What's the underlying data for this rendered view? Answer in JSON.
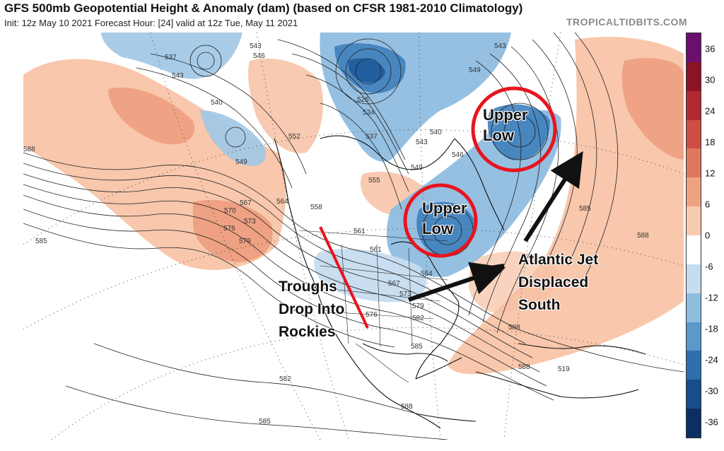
{
  "header": {
    "title": "GFS 500mb Geopotential Height & Anomaly (dam) (based on CFSR 1981-2010 Climatology)",
    "subtitle": "Init: 12z May 10 2021   Forecast Hour: [24]   valid at 12z Tue, May 11 2021",
    "brand": "TROPICALTIDBITS.COM"
  },
  "colorbar": {
    "labels": [
      "36",
      "30",
      "24",
      "18",
      "12",
      "6",
      "0",
      "-6",
      "-12",
      "-18",
      "-24",
      "-30",
      "-36"
    ],
    "colors": [
      "#6a0f6e",
      "#8c1226",
      "#b02a32",
      "#cc4e44",
      "#e0785f",
      "#efa282",
      "#f9cbb0",
      "#ffffff",
      "#c6dcef",
      "#8fbde0",
      "#5b98cb",
      "#2f6fae",
      "#174d8a",
      "#0b2f63"
    ]
  },
  "annotations": {
    "upper_low_1": "Upper Low",
    "upper_low_2": "Upper Low",
    "jet_line1": "Atlantic Jet",
    "jet_line2": "Displaced",
    "jet_line3": "South",
    "troughs_line1": "Troughs",
    "troughs_line2": "Drop Into",
    "troughs_line3": "Rockies"
  },
  "contour_labels": [
    "537",
    "543",
    "546",
    "543",
    "549",
    "540",
    "549",
    "552",
    "543",
    "540",
    "546",
    "549",
    "555",
    "558",
    "561",
    "564",
    "567",
    "570",
    "573",
    "576",
    "579",
    "588",
    "585",
    "585",
    "588",
    "588",
    "588",
    "582",
    "585",
    "588",
    "561",
    "567",
    "564",
    "573",
    "576",
    "579",
    "582",
    "585",
    "519",
    "525",
    "534",
    "537",
    "543"
  ],
  "colors": {
    "upper_low_circle": "#e8141e",
    "trough_line": "#e8141e",
    "arrow": "#111111"
  }
}
